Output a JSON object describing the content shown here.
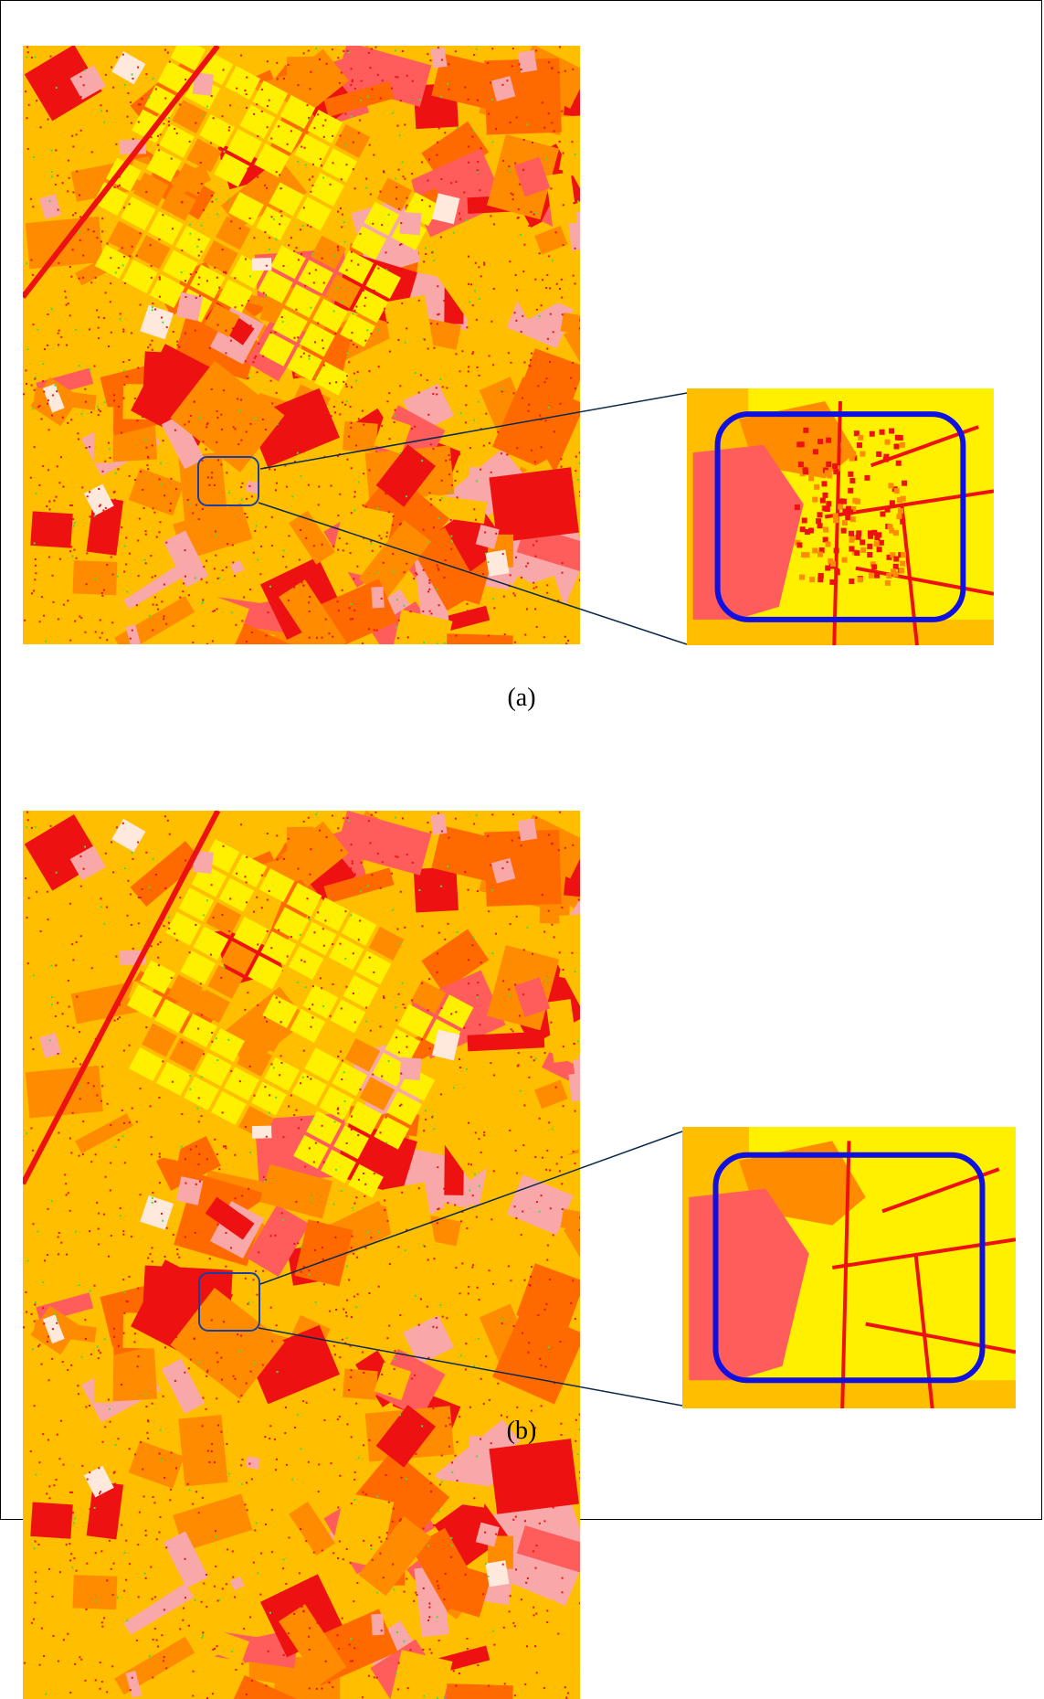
{
  "figure": {
    "panels": [
      {
        "id": "a",
        "caption": "(a)"
      },
      {
        "id": "b",
        "caption": "(b)"
      }
    ],
    "colors": {
      "yellow": "#FFF000",
      "light_orange": "#FFBE00",
      "orange": "#FF8C00",
      "dark_orange": "#FF6A00",
      "red": "#EE1111",
      "salmon": "#FF5C5C",
      "pink": "#F8A8A8",
      "white_pink": "#FFE8DC",
      "green": "#44DD44",
      "highlight_ring": "#1010E0",
      "leader_line": "#0A2A4A"
    }
  }
}
